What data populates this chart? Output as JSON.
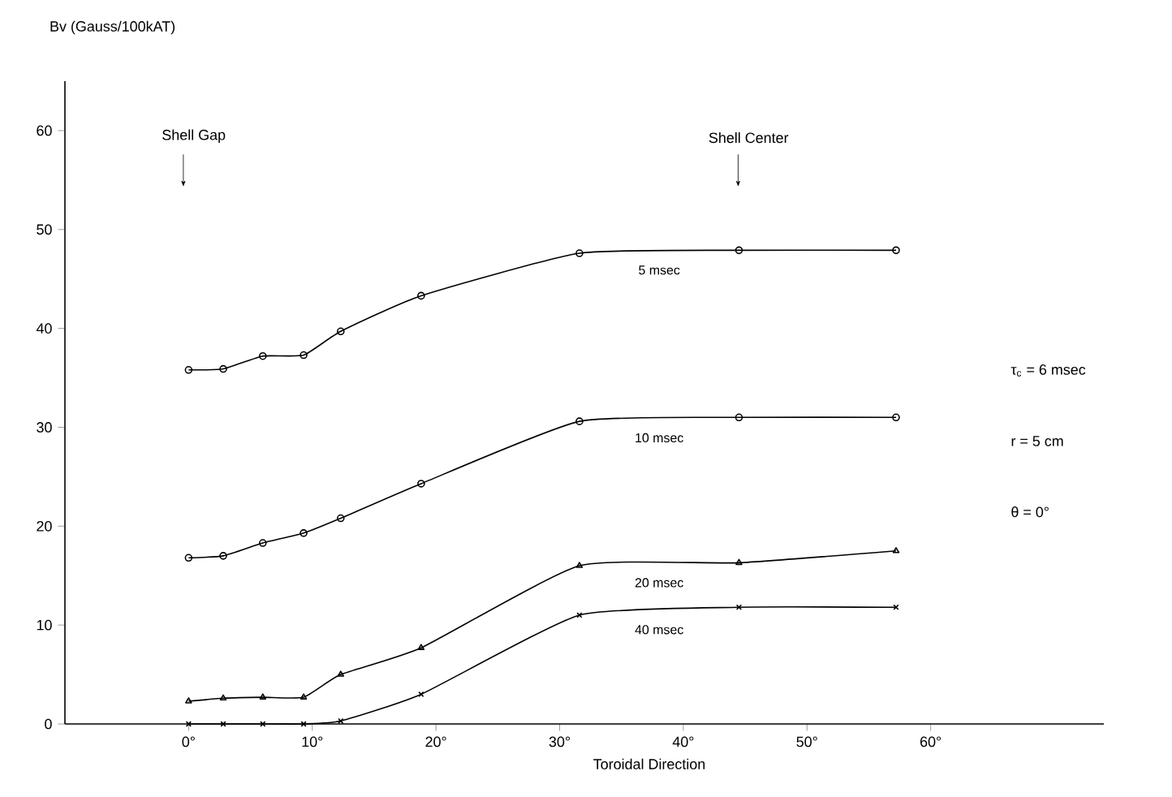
{
  "chart_data": {
    "type": "line",
    "xlabel": "Toroidal Direction",
    "ylabel": "Bv (Gauss/100kAT)",
    "xlim": [
      -10,
      74
    ],
    "ylim": [
      0,
      65
    ],
    "xticks": [
      {
        "value": 0,
        "label": "0°"
      },
      {
        "value": 10,
        "label": "10°"
      },
      {
        "value": 20,
        "label": "20°"
      },
      {
        "value": 30,
        "label": "30°"
      },
      {
        "value": 40,
        "label": "40°"
      },
      {
        "value": 50,
        "label": "50°"
      },
      {
        "value": 60,
        "label": "60°"
      }
    ],
    "yticks": [
      0,
      10,
      20,
      30,
      40,
      50,
      60
    ],
    "grid": false,
    "legend": false,
    "line_style": "solid",
    "x": [
      0,
      2.8,
      6,
      9.3,
      12.3,
      18.8,
      31.6,
      44.5,
      57.2
    ],
    "series": [
      {
        "name": "5 msec",
        "color": "#000000",
        "marker": "circle",
        "values": [
          35.8,
          35.9,
          37.2,
          37.3,
          39.7,
          43.3,
          47.6,
          47.9,
          47.9
        ]
      },
      {
        "name": "10 msec",
        "color": "#000000",
        "marker": "circle",
        "values": [
          16.8,
          17.0,
          18.3,
          19.3,
          20.8,
          24.3,
          30.6,
          31.0,
          31.0
        ]
      },
      {
        "name": "20 msec",
        "color": "#000000",
        "marker": "triangle",
        "values": [
          2.3,
          2.6,
          2.7,
          2.7,
          5.0,
          7.7,
          16.0,
          16.3,
          17.5
        ]
      },
      {
        "name": "40 msec",
        "color": "#000000",
        "marker": "cross",
        "values": [
          0,
          0,
          0,
          0,
          0.3,
          3.0,
          11.0,
          11.8,
          11.8
        ]
      }
    ],
    "annotations": [
      "Shell Gap",
      "Shell Center",
      "τ$_{c}$ = 6 msec",
      "r = 5 cm",
      "θ = 0°"
    ]
  }
}
